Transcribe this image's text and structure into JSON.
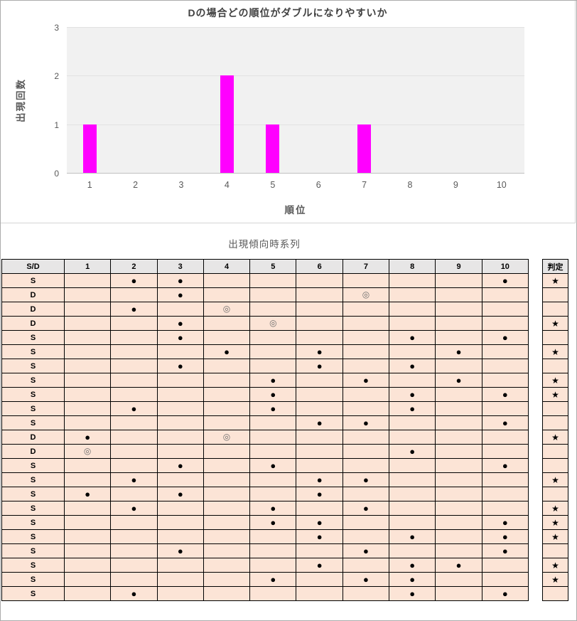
{
  "chart_data": {
    "type": "bar",
    "title": "Dの場合どの順位がダブルになりやすいか",
    "xlabel": "順位",
    "ylabel": "出現回数",
    "categories": [
      "1",
      "2",
      "3",
      "4",
      "5",
      "6",
      "7",
      "8",
      "9",
      "10"
    ],
    "values": [
      1,
      0,
      0,
      2,
      1,
      0,
      1,
      0,
      0,
      0
    ],
    "ylim": [
      0,
      3
    ],
    "yticks": [
      0,
      1,
      2,
      3
    ],
    "grid": true,
    "legend": false,
    "bar_color": "#FF00FF",
    "plot_bg": "#F1F1F1"
  },
  "table": {
    "title": "出現傾向時系列",
    "columns": [
      "S/D",
      "1",
      "2",
      "3",
      "4",
      "5",
      "6",
      "7",
      "8",
      "9",
      "10"
    ],
    "judge_column": "判定",
    "symbols": {
      "filled_dot": "●",
      "double_circle": "◎",
      "star": "★"
    },
    "rows": [
      {
        "sd": "S",
        "cells": [
          "",
          "●",
          "●",
          "",
          "",
          "",
          "",
          "",
          "",
          "●"
        ],
        "judge": "★"
      },
      {
        "sd": "D",
        "cells": [
          "",
          "",
          "●",
          "",
          "",
          "",
          "◎",
          "",
          "",
          ""
        ],
        "judge": ""
      },
      {
        "sd": "D",
        "cells": [
          "",
          "●",
          "",
          "◎",
          "",
          "",
          "",
          "",
          "",
          ""
        ],
        "judge": ""
      },
      {
        "sd": "D",
        "cells": [
          "",
          "",
          "●",
          "",
          "◎",
          "",
          "",
          "",
          "",
          ""
        ],
        "judge": "★"
      },
      {
        "sd": "S",
        "cells": [
          "",
          "",
          "●",
          "",
          "",
          "",
          "",
          "●",
          "",
          "●"
        ],
        "judge": ""
      },
      {
        "sd": "S",
        "cells": [
          "",
          "",
          "",
          "●",
          "",
          "●",
          "",
          "",
          "●",
          ""
        ],
        "judge": "★"
      },
      {
        "sd": "S",
        "cells": [
          "",
          "",
          "●",
          "",
          "",
          "●",
          "",
          "●",
          "",
          ""
        ],
        "judge": ""
      },
      {
        "sd": "S",
        "cells": [
          "",
          "",
          "",
          "",
          "●",
          "",
          "●",
          "",
          "●",
          ""
        ],
        "judge": "★"
      },
      {
        "sd": "S",
        "cells": [
          "",
          "",
          "",
          "",
          "●",
          "",
          "",
          "●",
          "",
          "●"
        ],
        "judge": "★"
      },
      {
        "sd": "S",
        "cells": [
          "",
          "●",
          "",
          "",
          "●",
          "",
          "",
          "●",
          "",
          ""
        ],
        "judge": ""
      },
      {
        "sd": "S",
        "cells": [
          "",
          "",
          "",
          "",
          "",
          "●",
          "●",
          "",
          "",
          "●"
        ],
        "judge": ""
      },
      {
        "sd": "D",
        "cells": [
          "●",
          "",
          "",
          "◎",
          "",
          "",
          "",
          "",
          "",
          ""
        ],
        "judge": "★"
      },
      {
        "sd": "D",
        "cells": [
          "◎",
          "",
          "",
          "",
          "",
          "",
          "",
          "●",
          "",
          ""
        ],
        "judge": ""
      },
      {
        "sd": "S",
        "cells": [
          "",
          "",
          "●",
          "",
          "●",
          "",
          "",
          "",
          "",
          "●"
        ],
        "judge": ""
      },
      {
        "sd": "S",
        "cells": [
          "",
          "●",
          "",
          "",
          "",
          "●",
          "●",
          "",
          "",
          ""
        ],
        "judge": "★"
      },
      {
        "sd": "S",
        "cells": [
          "●",
          "",
          "●",
          "",
          "",
          "●",
          "",
          "",
          "",
          ""
        ],
        "judge": ""
      },
      {
        "sd": "S",
        "cells": [
          "",
          "●",
          "",
          "",
          "●",
          "",
          "●",
          "",
          "",
          ""
        ],
        "judge": "★"
      },
      {
        "sd": "S",
        "cells": [
          "",
          "",
          "",
          "",
          "●",
          "●",
          "",
          "",
          "",
          "●"
        ],
        "judge": "★"
      },
      {
        "sd": "S",
        "cells": [
          "",
          "",
          "",
          "",
          "",
          "●",
          "",
          "●",
          "",
          "●"
        ],
        "judge": "★"
      },
      {
        "sd": "S",
        "cells": [
          "",
          "",
          "●",
          "",
          "",
          "",
          "●",
          "",
          "",
          "●"
        ],
        "judge": ""
      },
      {
        "sd": "S",
        "cells": [
          "",
          "",
          "",
          "",
          "",
          "●",
          "",
          "●",
          "●",
          ""
        ],
        "judge": "★"
      },
      {
        "sd": "S",
        "cells": [
          "",
          "",
          "",
          "",
          "●",
          "",
          "●",
          "●",
          "",
          ""
        ],
        "judge": "★"
      },
      {
        "sd": "S",
        "cells": [
          "",
          "●",
          "",
          "",
          "",
          "",
          "",
          "●",
          "",
          "●"
        ],
        "judge": ""
      }
    ]
  },
  "colors": {
    "bar": "#FF00FF",
    "table_header_bg": "#E7E6E6",
    "table_row_bg": "#FCE4D6",
    "chart_text": "#595959",
    "title_text": "#404040",
    "double_circle": "#6E6E6E"
  }
}
